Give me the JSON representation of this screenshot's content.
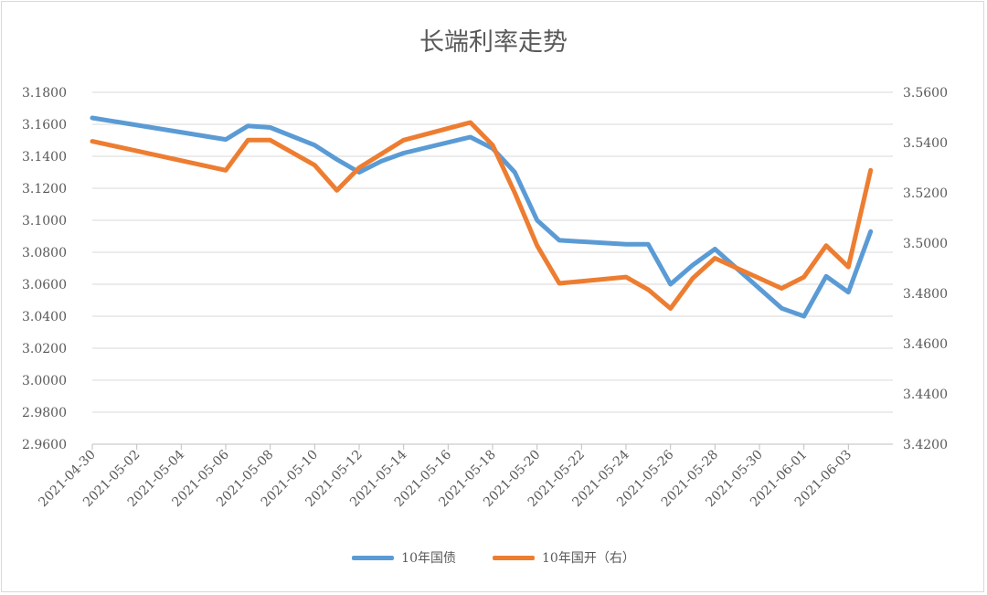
{
  "chart_data": {
    "type": "line",
    "title": "长端利率走势",
    "x": [
      "2021-04-30",
      "2021-05-06",
      "2021-05-07",
      "2021-05-08",
      "2021-05-10",
      "2021-05-11",
      "2021-05-12",
      "2021-05-13",
      "2021-05-14",
      "2021-05-17",
      "2021-05-18",
      "2021-05-19",
      "2021-05-20",
      "2021-05-21",
      "2021-05-24",
      "2021-05-25",
      "2021-05-26",
      "2021-05-27",
      "2021-05-28",
      "2021-05-31",
      "2021-06-01",
      "2021-06-02",
      "2021-06-03",
      "2021-06-04"
    ],
    "x_tick_labels": [
      "2021-04-30",
      "2021-05-02",
      "2021-05-04",
      "2021-05-06",
      "2021-05-08",
      "2021-05-10",
      "2021-05-12",
      "2021-05-14",
      "2021-05-16",
      "2021-05-18",
      "2021-05-20",
      "2021-05-22",
      "2021-05-24",
      "2021-05-26",
      "2021-05-28",
      "2021-05-30",
      "2021-06-01",
      "2021-06-03"
    ],
    "x_range": [
      "2021-04-30",
      "2021-06-05"
    ],
    "y_left": {
      "ylim": [
        2.96,
        3.18
      ],
      "ticks": [
        "2.9600",
        "2.9800",
        "3.0000",
        "3.0200",
        "3.0400",
        "3.0600",
        "3.0800",
        "3.1000",
        "3.1200",
        "3.1400",
        "3.1600",
        "3.1800"
      ]
    },
    "y_right": {
      "ylim": [
        3.42,
        3.56
      ],
      "ticks": [
        "3.4200",
        "3.4400",
        "3.4600",
        "3.4800",
        "3.5000",
        "3.5200",
        "3.5400",
        "3.5600"
      ]
    },
    "series": [
      {
        "name": "10年国债",
        "axis": "left",
        "color": "#5b9bd5",
        "values": [
          3.164,
          3.1505,
          3.159,
          3.158,
          3.147,
          3.138,
          3.13,
          3.137,
          3.142,
          3.152,
          3.145,
          3.13,
          3.1,
          3.0875,
          3.085,
          3.085,
          3.06,
          3.072,
          3.082,
          3.045,
          3.04,
          3.065,
          3.055,
          3.093
        ]
      },
      {
        "name": "10年国开（右）",
        "axis": "right",
        "color": "#ed7d31",
        "values": [
          3.5405,
          3.529,
          3.541,
          3.541,
          3.531,
          3.521,
          3.53,
          3.5355,
          3.541,
          3.548,
          3.539,
          3.52,
          3.499,
          3.484,
          3.4865,
          3.4815,
          3.474,
          3.486,
          3.494,
          3.482,
          3.4865,
          3.499,
          3.4905,
          3.529
        ]
      }
    ],
    "grid": true,
    "legend": "bottom-center"
  }
}
